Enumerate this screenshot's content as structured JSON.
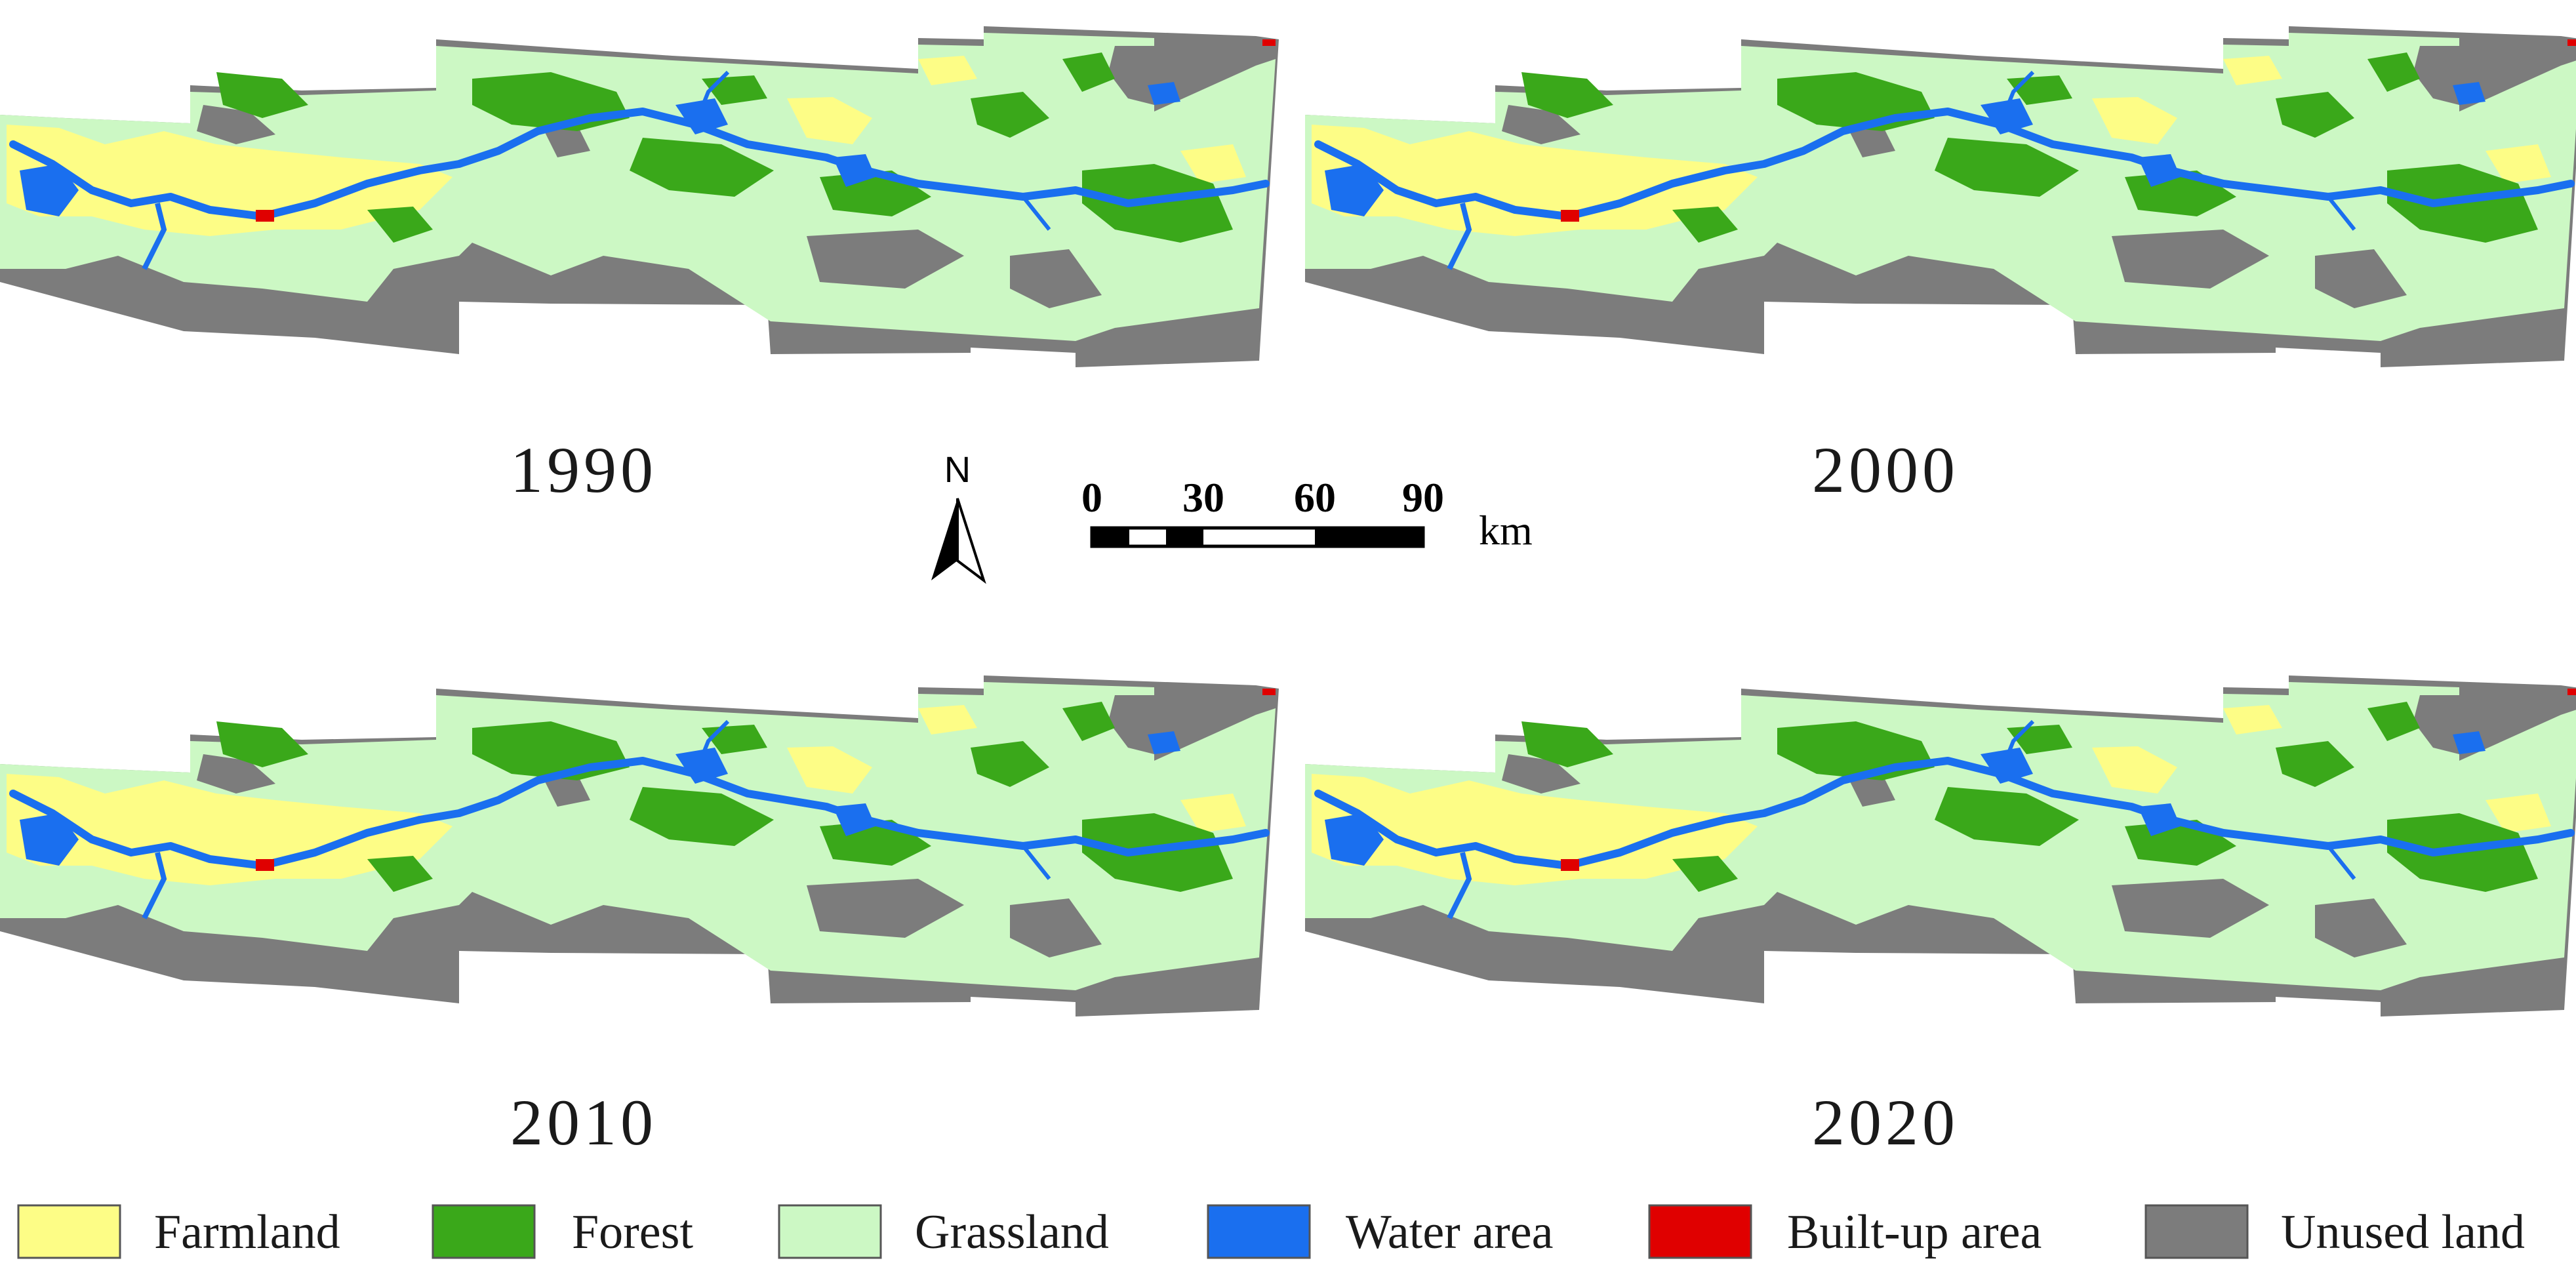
{
  "panels": [
    {
      "year": "1990"
    },
    {
      "year": "2000"
    },
    {
      "year": "2010"
    },
    {
      "year": "2020"
    }
  ],
  "north_arrow": {
    "letter": "N"
  },
  "scale_bar": {
    "ticks": [
      "0",
      "30",
      "60",
      "90"
    ],
    "unit": "km"
  },
  "legend": [
    {
      "label": "Farmland",
      "color": "#fdfd86"
    },
    {
      "label": "Forest",
      "color": "#3aa81a"
    },
    {
      "label": "Grassland",
      "color": "#ccf8c4"
    },
    {
      "label": "Water area",
      "color": "#1a6fef"
    },
    {
      "label": "Built-up area",
      "color": "#e00000"
    },
    {
      "label": "Unused land",
      "color": "#7c7c7c"
    }
  ]
}
